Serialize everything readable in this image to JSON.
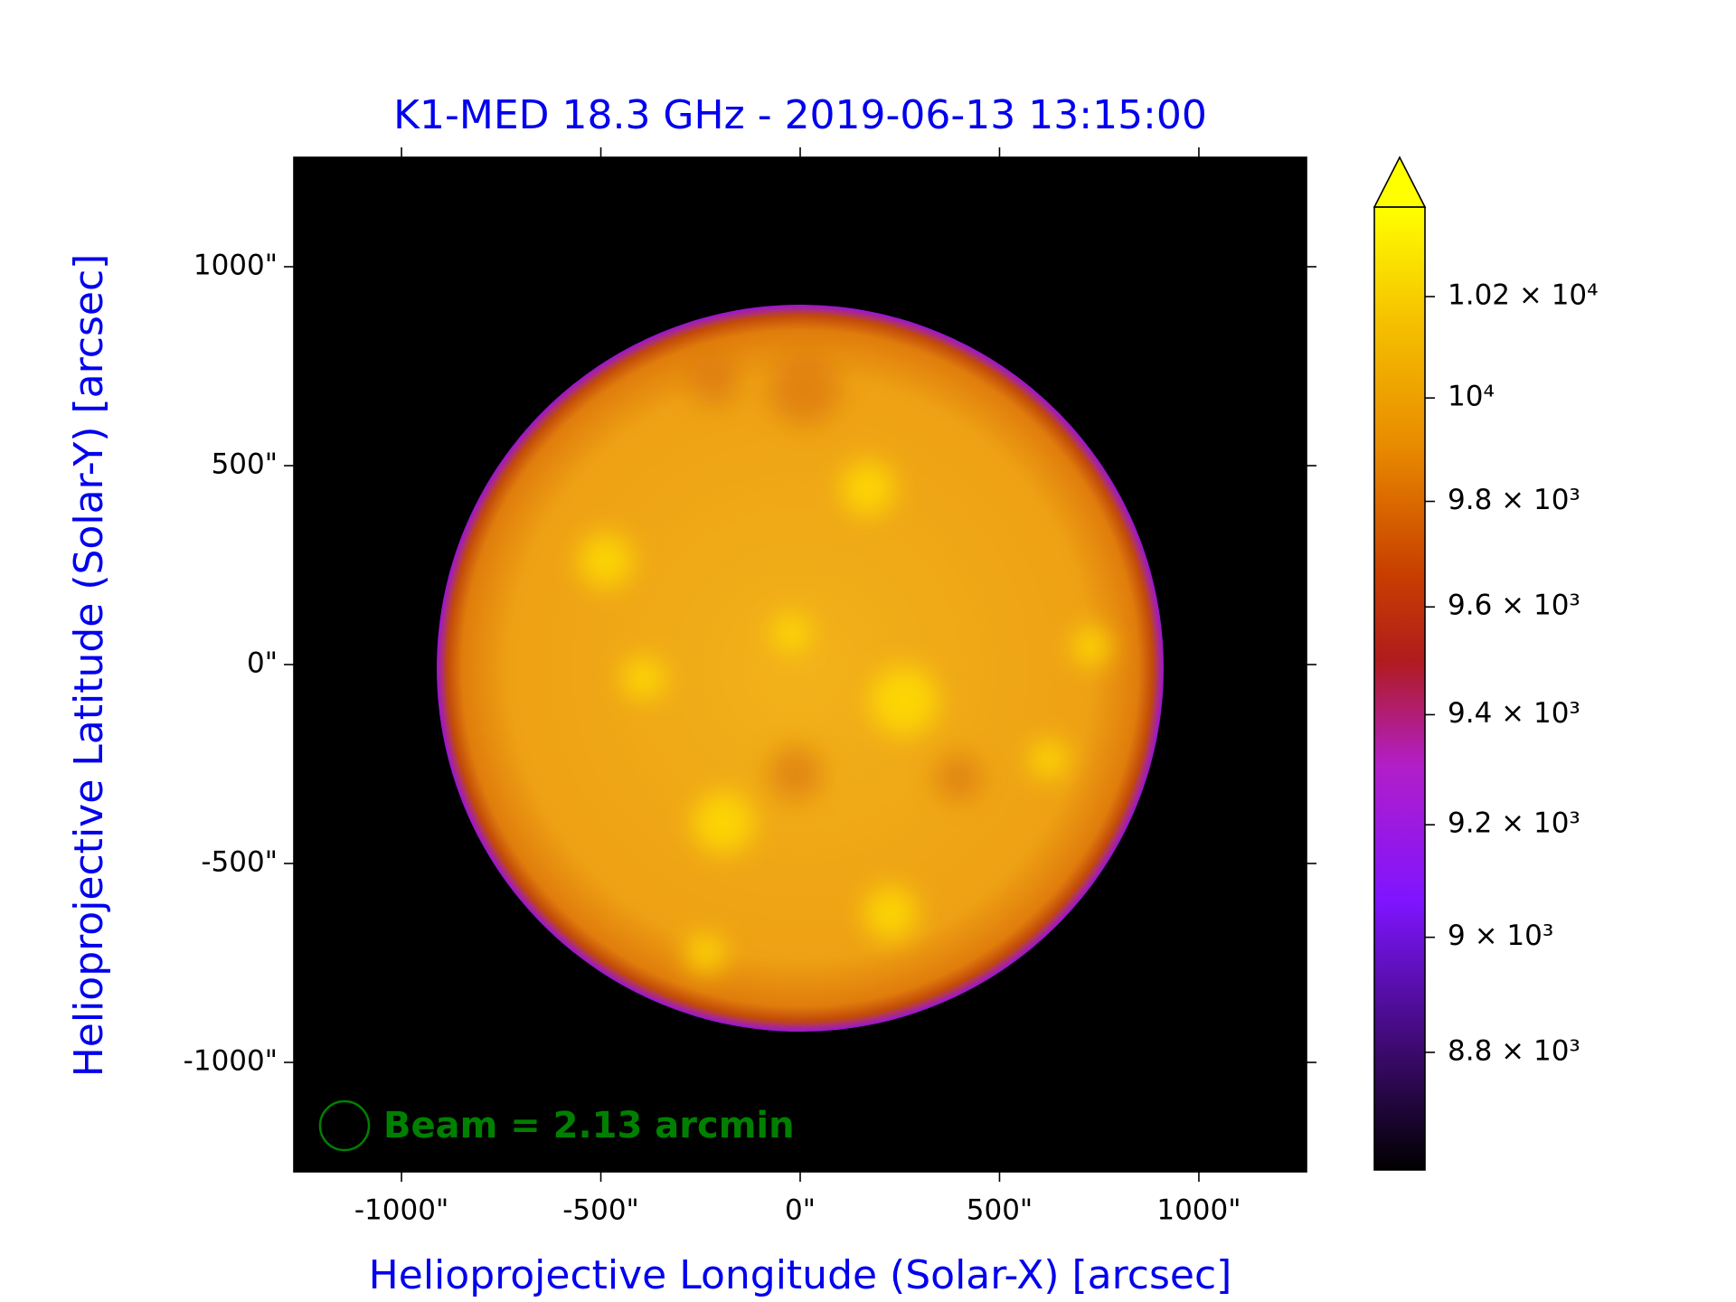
{
  "chart_data": {
    "type": "image",
    "title": "K1-MED 18.3 GHz - 2019-06-13 13:15:00",
    "x_label": "Helioprojective Longitude (Solar-X) [arcsec]",
    "y_label": "Helioprojective Latitude (Solar-Y) [arcsec]",
    "xlim": [
      -1270,
      1270
    ],
    "ylim": [
      -1275,
      1275
    ],
    "xticks": [
      {
        "value": -1000,
        "label": "-1000\""
      },
      {
        "value": -500,
        "label": "-500\""
      },
      {
        "value": 0,
        "label": "0\""
      },
      {
        "value": 500,
        "label": "500\""
      },
      {
        "value": 1000,
        "label": "1000\""
      }
    ],
    "yticks": [
      {
        "value": -1000,
        "label": "-1000\""
      },
      {
        "value": -500,
        "label": "-500\""
      },
      {
        "value": 0,
        "label": "0\""
      },
      {
        "value": 500,
        "label": "500\""
      },
      {
        "value": 1000,
        "label": "1000\""
      }
    ],
    "colorbar": {
      "scale": "log",
      "lim": [
        8600,
        10380
      ],
      "ticks": [
        {
          "value": 8800,
          "label": "8.8 × 10³"
        },
        {
          "value": 9000,
          "label": "9 × 10³"
        },
        {
          "value": 9200,
          "label": "9.2 × 10³"
        },
        {
          "value": 9400,
          "label": "9.4 × 10³"
        },
        {
          "value": 9600,
          "label": "9.6 × 10³"
        },
        {
          "value": 9800,
          "label": "9.8 × 10³"
        },
        {
          "value": 10000,
          "label": "10⁴"
        },
        {
          "value": 10200,
          "label": "1.02 × 10⁴"
        }
      ]
    },
    "annotation": "Beam = 2.13 arcmin"
  }
}
